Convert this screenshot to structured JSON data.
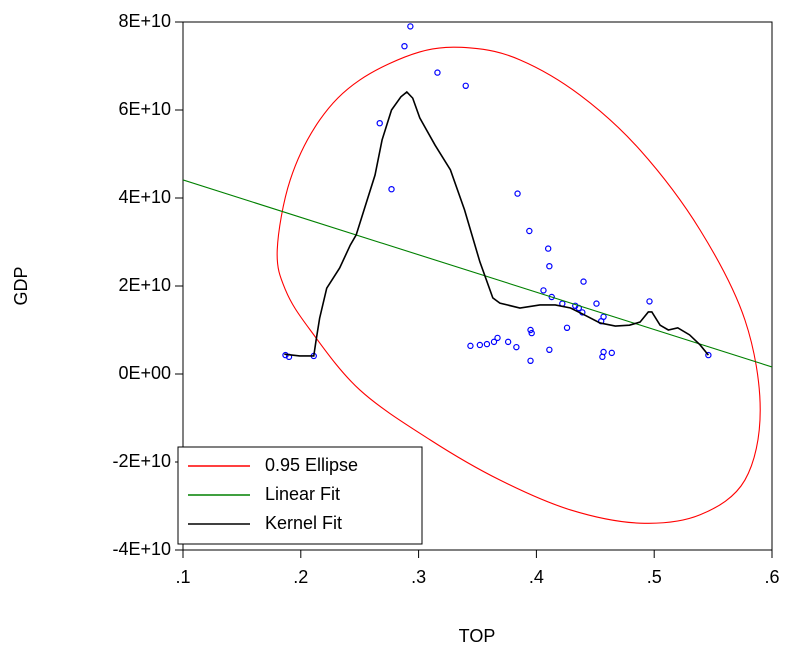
{
  "chart_data": {
    "type": "scatter",
    "x_label": "TOP",
    "y_label": "GDP",
    "xlim": [
      0.1,
      0.6
    ],
    "xticks": [
      {
        "value": 0.1,
        "label": ".1"
      },
      {
        "value": 0.2,
        "label": ".2"
      },
      {
        "value": 0.3,
        "label": ".3"
      },
      {
        "value": 0.4,
        "label": ".4"
      },
      {
        "value": 0.5,
        "label": ".5"
      },
      {
        "value": 0.6,
        "label": ".6"
      }
    ],
    "ylim": [
      -40000000000,
      80000000000
    ],
    "yticks": [
      {
        "value": -40000000000,
        "label": "-4E+10"
      },
      {
        "value": -20000000000,
        "label": "-2E+10"
      },
      {
        "value": 0,
        "label": "0E+00"
      },
      {
        "value": 20000000000,
        "label": "2E+10"
      },
      {
        "value": 40000000000,
        "label": "4E+10"
      },
      {
        "value": 60000000000,
        "label": "6E+10"
      },
      {
        "value": 80000000000,
        "label": "8E+10"
      }
    ],
    "legend": "lower left",
    "series": [
      {
        "marker": "circle",
        "color": "#0000ff",
        "x": [
          0.187,
          0.19,
          0.211,
          0.267,
          0.277,
          0.288,
          0.293,
          0.316,
          0.34,
          0.384,
          0.394,
          0.41,
          0.411,
          0.44,
          0.406,
          0.413,
          0.422,
          0.451,
          0.433,
          0.436,
          0.439,
          0.457,
          0.455,
          0.496,
          0.426,
          0.395,
          0.396,
          0.367,
          0.364,
          0.376,
          0.358,
          0.352,
          0.344,
          0.383,
          0.411,
          0.457,
          0.464,
          0.456,
          0.395,
          0.546
        ],
        "values": [
          4300000000,
          3900000000,
          4100000000,
          57000000000,
          42000000000,
          74500000000,
          79000000000,
          68500000000,
          65500000000,
          41000000000,
          32500000000,
          28500000000,
          24500000000,
          21000000000,
          19000000000,
          17500000000,
          16000000000,
          16000000000,
          15500000000,
          15000000000,
          14000000000,
          13000000000,
          12000000000,
          16500000000,
          10500000000,
          10000000000,
          9300000000,
          8200000000,
          7300000000,
          7300000000,
          6800000000,
          6600000000,
          6400000000,
          6100000000,
          5500000000,
          5000000000,
          4800000000,
          3900000000,
          3000000000,
          4300000000
        ]
      },
      {
        "name": "0.95 Ellipse",
        "line": "closed",
        "color": "#ff0000",
        "x": [
          0.18,
          0.191,
          0.216,
          0.25,
          0.301,
          0.344,
          0.386,
          0.437,
          0.488,
          0.539,
          0.577,
          0.59,
          0.577,
          0.539,
          0.488,
          0.429,
          0.369,
          0.31,
          0.25,
          0.208,
          0.187
        ],
        "values": [
          28200000000,
          44100000000,
          57700000000,
          66800000000,
          73200000000,
          74100000000,
          71400000000,
          63400000000,
          50900000000,
          32700000000,
          12300000000,
          -8200000000,
          -24100000000,
          -32000000000,
          -33900000000,
          -30900000000,
          -24100000000,
          -15000000000,
          -3600000000,
          10000000000,
          19100000000
        ]
      },
      {
        "name": "Linear Fit",
        "line": "open",
        "color": "#008000",
        "x": [
          0.1,
          0.6
        ],
        "values": [
          44100000000,
          1600000000
        ]
      },
      {
        "name": "Kernel Fit",
        "line": "open",
        "color": "#000000",
        "x": [
          0.186,
          0.199,
          0.211,
          0.213,
          0.216,
          0.222,
          0.233,
          0.242,
          0.247,
          0.255,
          0.263,
          0.269,
          0.277,
          0.285,
          0.29,
          0.295,
          0.301,
          0.314,
          0.327,
          0.339,
          0.352,
          0.363,
          0.369,
          0.386,
          0.403,
          0.416,
          0.429,
          0.441,
          0.454,
          0.467,
          0.479,
          0.488,
          0.495,
          0.498,
          0.505,
          0.512,
          0.52,
          0.53,
          0.539,
          0.546
        ],
        "values": [
          4500000000,
          4100000000,
          4100000000,
          7700000000,
          12700000000,
          19500000000,
          24100000000,
          29300000000,
          31600000000,
          38400000000,
          45200000000,
          53200000000,
          60000000000,
          63000000000,
          64100000000,
          62700000000,
          58200000000,
          52000000000,
          46400000000,
          37300000000,
          25500000000,
          17300000000,
          16100000000,
          15000000000,
          15700000000,
          15700000000,
          15000000000,
          13400000000,
          11600000000,
          10900000000,
          11100000000,
          11800000000,
          14100000000,
          14100000000,
          11100000000,
          10000000000,
          10500000000,
          8900000000,
          6600000000,
          4300000000
        ]
      }
    ]
  }
}
